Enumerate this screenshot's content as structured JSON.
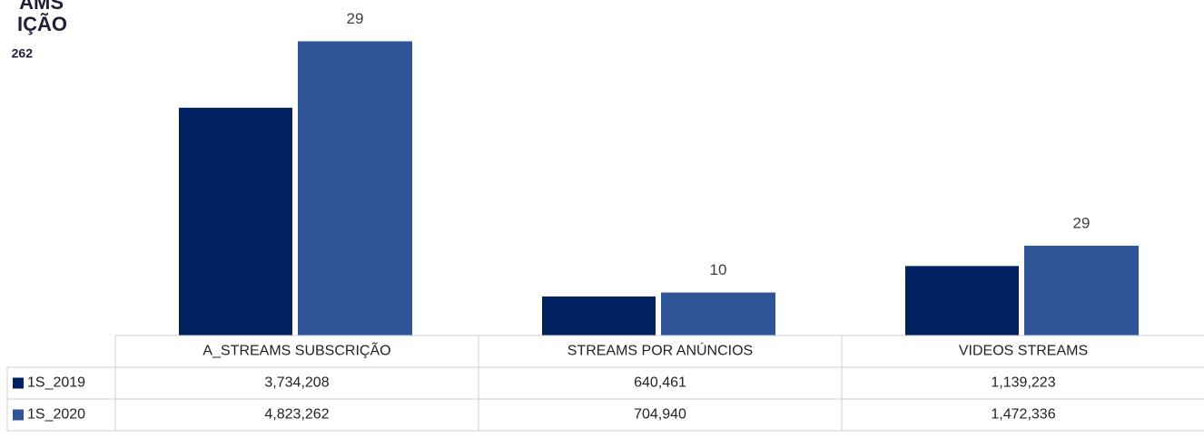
{
  "chart_data": {
    "type": "bar",
    "title_fragments": [
      "AMS",
      "IÇÃO",
      "262"
    ],
    "categories": [
      "A_STREAMS SUBSCRIÇÃO",
      "STREAMS  POR ANÚNCIOS",
      "VIDEOS STREAMS"
    ],
    "series": [
      {
        "name": "1S_2019",
        "color": "#002060",
        "values": [
          3734208,
          640461,
          1139223
        ],
        "value_labels": [
          "3,734,208",
          "640,461",
          "1,139,223"
        ]
      },
      {
        "name": "1S_2020",
        "color": "#2f5597",
        "values": [
          4823262,
          704940,
          1472336
        ],
        "value_labels": [
          "4,823,262",
          "704,940",
          "1,472,336"
        ]
      }
    ],
    "annotations": [
      "29",
      "10",
      "29"
    ],
    "ylim": [
      0,
      5500000
    ]
  }
}
